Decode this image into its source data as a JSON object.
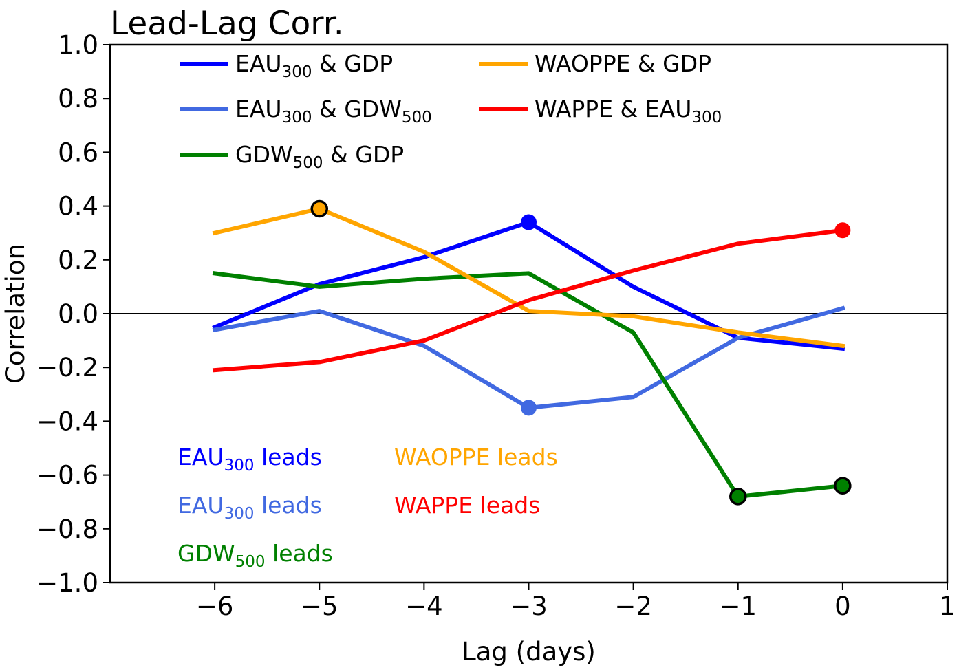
{
  "chart_data": {
    "type": "line",
    "title": "Lead-Lag Corr.",
    "xlabel": "Lag (days)",
    "ylabel": "Correlation",
    "xlim": [
      -7,
      1
    ],
    "ylim": [
      -1.0,
      1.0
    ],
    "grid": false,
    "legend_position": "upper-left",
    "reference_line_y": 0.0,
    "x": [
      -6,
      -5,
      -4,
      -3,
      -2,
      -1,
      0
    ],
    "xticks": [
      -6,
      -5,
      -4,
      -3,
      -2,
      -1,
      0,
      1
    ],
    "xtick_labels": [
      "−6",
      "−5",
      "−4",
      "−3",
      "−2",
      "−1",
      "0",
      "1"
    ],
    "yticks": [
      1.0,
      0.8,
      0.6,
      0.4,
      0.2,
      0.0,
      -0.2,
      -0.4,
      -0.6,
      -0.8,
      -1.0
    ],
    "ytick_labels": [
      "1.0",
      "0.8",
      "0.6",
      "0.4",
      "0.2",
      "0.0",
      "−0.2",
      "−0.4",
      "−0.6",
      "−0.8",
      "−1.0"
    ],
    "series": [
      {
        "label_parts": [
          {
            "text": "EAU"
          },
          {
            "text": "300",
            "sub": true
          },
          {
            "text": " & GDP"
          }
        ],
        "color": "#0000ff",
        "values": [
          -0.05,
          0.11,
          0.21,
          0.34,
          0.1,
          -0.09,
          -0.13
        ],
        "highlighted_x": [
          -3
        ],
        "marker_edgecolor": null
      },
      {
        "label_parts": [
          {
            "text": "EAU"
          },
          {
            "text": "300",
            "sub": true
          },
          {
            "text": " & GDW"
          },
          {
            "text": "500",
            "sub": true
          }
        ],
        "color": "#4169e1",
        "values": [
          -0.06,
          0.01,
          -0.12,
          -0.35,
          -0.31,
          -0.09,
          0.02
        ],
        "highlighted_x": [
          -3
        ],
        "marker_edgecolor": null
      },
      {
        "label_parts": [
          {
            "text": "GDW"
          },
          {
            "text": "500",
            "sub": true
          },
          {
            "text": " & GDP"
          }
        ],
        "color": "#008000",
        "values": [
          0.15,
          0.1,
          0.13,
          0.15,
          -0.07,
          -0.68,
          -0.64
        ],
        "highlighted_x": [
          -1,
          0
        ],
        "marker_edgecolor": "#000000"
      },
      {
        "label_parts": [
          {
            "text": "WAOPPE & GDP"
          }
        ],
        "color": "#ffa500",
        "values": [
          0.3,
          0.39,
          0.23,
          0.01,
          -0.01,
          -0.07,
          -0.12
        ],
        "highlighted_x": [
          -5
        ],
        "marker_edgecolor": "#000000"
      },
      {
        "label_parts": [
          {
            "text": "WAPPE & EAU"
          },
          {
            "text": "300",
            "sub": true
          }
        ],
        "color": "#ff0000",
        "values": [
          -0.21,
          -0.18,
          -0.1,
          0.05,
          0.16,
          0.26,
          0.31
        ],
        "highlighted_x": [
          0
        ],
        "marker_edgecolor": null
      }
    ],
    "annotations": [
      {
        "parts": [
          {
            "text": "EAU"
          },
          {
            "text": "300",
            "sub": true
          },
          {
            "text": " leads"
          }
        ],
        "color": "#0000ff"
      },
      {
        "parts": [
          {
            "text": "EAU"
          },
          {
            "text": "300",
            "sub": true
          },
          {
            "text": " leads"
          }
        ],
        "color": "#4169e1"
      },
      {
        "parts": [
          {
            "text": "GDW"
          },
          {
            "text": "500",
            "sub": true
          },
          {
            "text": " leads"
          }
        ],
        "color": "#008000"
      },
      {
        "parts": [
          {
            "text": "WAOPPE leads"
          }
        ],
        "color": "#ffa500"
      },
      {
        "parts": [
          {
            "text": "WAPPE leads"
          }
        ],
        "color": "#ff0000"
      }
    ]
  }
}
